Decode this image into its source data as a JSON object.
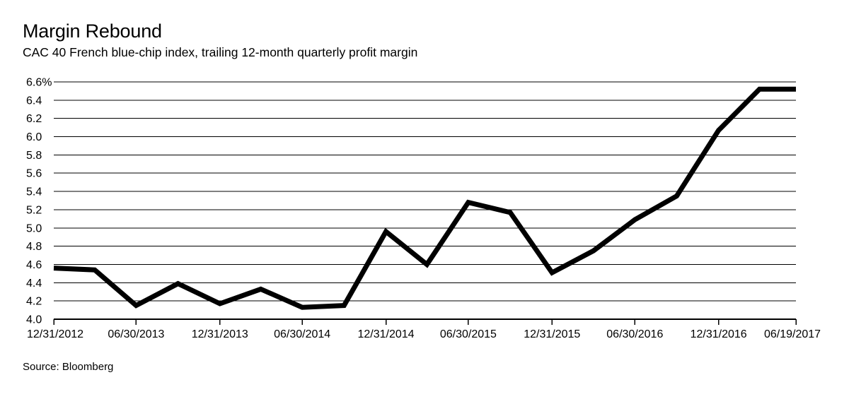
{
  "header": {
    "title": "Margin Rebound",
    "subtitle": "CAC 40 French blue-chip index, trailing 12-month quarterly profit margin"
  },
  "footer": {
    "source": "Source: Bloomberg"
  },
  "colors": {
    "line": "#000000",
    "grid": "#000000",
    "background": "#ffffff"
  },
  "chart_data": {
    "type": "line",
    "title": "Margin Rebound",
    "subtitle": "CAC 40 French blue-chip index, trailing 12-month quarterly profit margin",
    "xlabel": "",
    "ylabel": "",
    "ylim": [
      4.0,
      6.6
    ],
    "y_ticks": [
      4.0,
      4.2,
      4.4,
      4.6,
      4.8,
      5.0,
      5.2,
      5.4,
      5.6,
      5.8,
      6.0,
      6.2,
      6.4,
      6.6
    ],
    "y_tick_labels": [
      "4.0",
      "4.2",
      "4.4",
      "4.6",
      "4.8",
      "5.0",
      "5.2",
      "5.4",
      "5.6",
      "5.8",
      "6.0",
      "6.2",
      "6.4",
      "6.6%"
    ],
    "x_tick_labels": [
      "12/31/2012",
      "06/30/2013",
      "12/31/2013",
      "06/30/2014",
      "12/31/2014",
      "06/30/2015",
      "12/31/2015",
      "06/30/2016",
      "12/31/2016",
      "06/19/2017"
    ],
    "x_tick_dates": [
      "2012-12-31",
      "2013-06-30",
      "2013-12-31",
      "2014-06-30",
      "2014-12-31",
      "2015-06-30",
      "2015-12-31",
      "2016-06-30",
      "2016-12-31",
      "2017-06-19"
    ],
    "x_range": [
      "2012-12-31",
      "2017-06-19"
    ],
    "grid": true,
    "legend": "none",
    "series": [
      {
        "points": [
          {
            "x": "2012-12-31",
            "y": 4.56
          },
          {
            "x": "2013-03-31",
            "y": 4.54
          },
          {
            "x": "2013-06-30",
            "y": 4.15
          },
          {
            "x": "2013-09-30",
            "y": 4.39
          },
          {
            "x": "2013-12-31",
            "y": 4.17
          },
          {
            "x": "2014-03-31",
            "y": 4.33
          },
          {
            "x": "2014-06-30",
            "y": 4.13
          },
          {
            "x": "2014-09-30",
            "y": 4.15
          },
          {
            "x": "2014-12-31",
            "y": 4.96
          },
          {
            "x": "2015-03-31",
            "y": 4.6
          },
          {
            "x": "2015-06-30",
            "y": 5.28
          },
          {
            "x": "2015-09-30",
            "y": 5.17
          },
          {
            "x": "2015-12-31",
            "y": 4.51
          },
          {
            "x": "2016-03-31",
            "y": 4.75
          },
          {
            "x": "2016-06-30",
            "y": 5.09
          },
          {
            "x": "2016-09-30",
            "y": 5.35
          },
          {
            "x": "2016-12-31",
            "y": 6.07
          },
          {
            "x": "2017-03-31",
            "y": 6.52
          },
          {
            "x": "2017-06-19",
            "y": 6.52
          }
        ]
      }
    ]
  }
}
